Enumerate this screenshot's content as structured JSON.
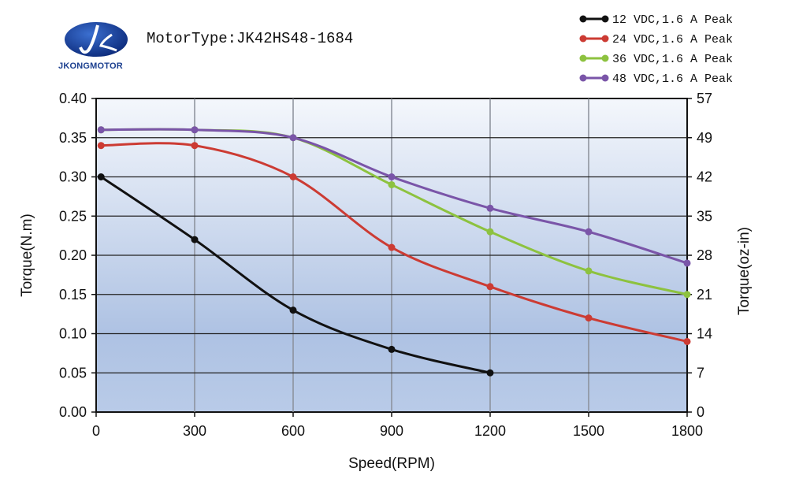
{
  "brand": {
    "logo_text": "JKONGMOTOR"
  },
  "title": "MotorType:JK42HS48-1684",
  "chart_data": {
    "type": "line",
    "title": "MotorType:JK42HS48-1684",
    "xlabel": "Speed(RPM)",
    "ylabel": "Torque(N.m)",
    "y2label": "Torque(oz-in)",
    "xlim": [
      0,
      1800
    ],
    "ylim": [
      0,
      0.4
    ],
    "xticks": [
      "0",
      "300",
      "600",
      "900",
      "1200",
      "1500",
      "1800"
    ],
    "yticks": [
      "0.00",
      "0.05",
      "0.10",
      "0.15",
      "0.20",
      "0.25",
      "0.30",
      "0.35",
      "0.40"
    ],
    "y2ticks": [
      "0",
      "7",
      "14",
      "21",
      "28",
      "35",
      "42",
      "49",
      "57"
    ],
    "grid": true,
    "legend_position": "top-right",
    "series": [
      {
        "name": "12 VDC,1.6 A Peak",
        "color": "#111111",
        "x": [
          15,
          300,
          600,
          900,
          1200
        ],
        "y": [
          0.3,
          0.22,
          0.13,
          0.08,
          0.05
        ]
      },
      {
        "name": "24 VDC,1.6 A Peak",
        "color": "#cc3b33",
        "x": [
          15,
          300,
          600,
          900,
          1200,
          1500,
          1800
        ],
        "y": [
          0.34,
          0.34,
          0.3,
          0.21,
          0.16,
          0.12,
          0.09
        ]
      },
      {
        "name": "36 VDC,1.6 A Peak",
        "color": "#8dc23f",
        "x": [
          15,
          300,
          600,
          900,
          1200,
          1500,
          1800
        ],
        "y": [
          0.36,
          0.36,
          0.35,
          0.29,
          0.23,
          0.18,
          0.15
        ]
      },
      {
        "name": "48 VDC,1.6 A Peak",
        "color": "#7a55a8",
        "x": [
          15,
          300,
          600,
          900,
          1200,
          1500,
          1800
        ],
        "y": [
          0.36,
          0.36,
          0.35,
          0.3,
          0.26,
          0.23,
          0.19
        ]
      }
    ]
  }
}
